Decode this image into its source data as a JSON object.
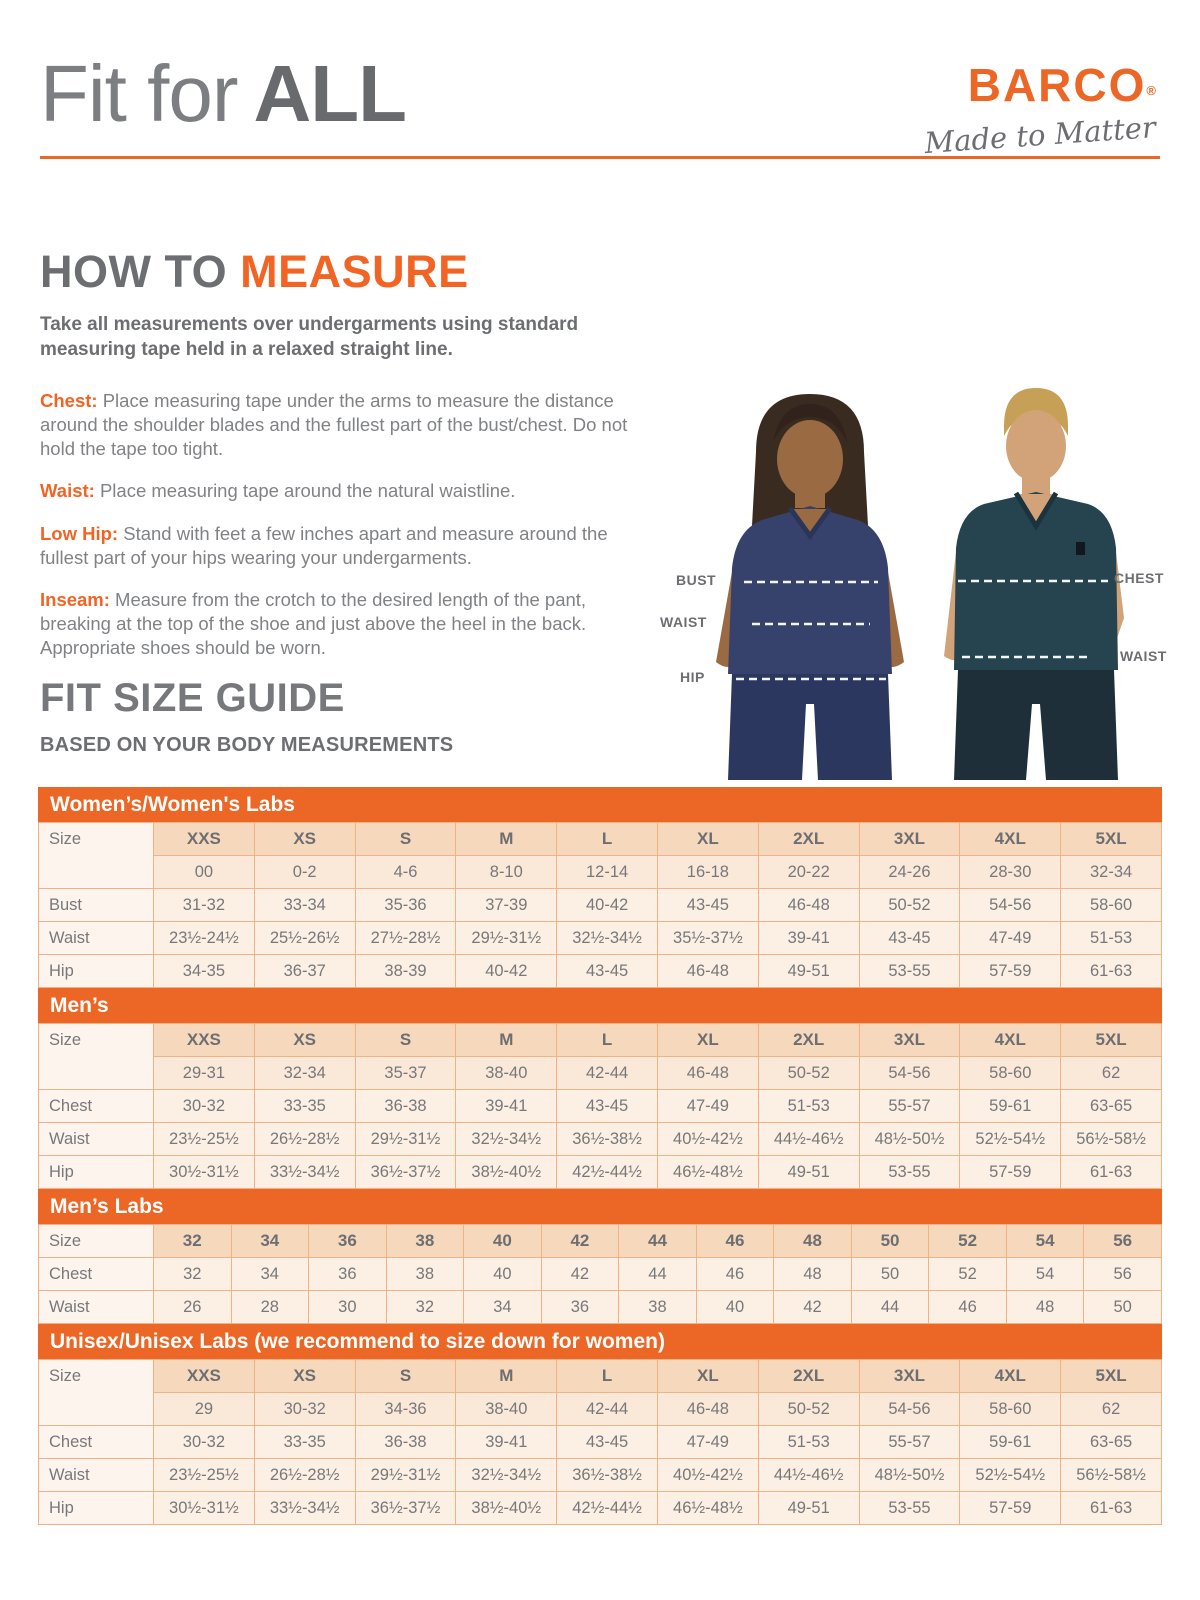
{
  "header": {
    "title_light": "Fit for",
    "title_bold": "ALL"
  },
  "brand": {
    "name": "BARCO",
    "registered": "®",
    "tagline": "Made to Matter"
  },
  "how_to_measure": {
    "heading_gray": "HOW TO ",
    "heading_orange": "MEASURE",
    "intro": "Take all measurements over undergarments using standard measuring tape held in a relaxed straight line.",
    "items": [
      {
        "label": "Chest:",
        "text": " Place measuring tape under the arms to measure the distance around the shoulder blades and the fullest part of the bust/chest. Do not hold the tape too tight."
      },
      {
        "label": "Waist:",
        "text": " Place measuring tape around the natural waistline."
      },
      {
        "label": "Low Hip:",
        "text": " Stand with feet a few inches apart and measure around the fullest part of your hips wearing your undergarments."
      },
      {
        "label": "Inseam:",
        "text": " Measure from the crotch to the desired length of the pant, breaking at the top of the shoe and just above the heel in the back. Appropriate shoes should be worn."
      }
    ]
  },
  "figure": {
    "bust_label": "BUST",
    "waist_left_label": "WAIST",
    "hip_label": "HIP",
    "chest_label": "CHEST",
    "waist_right_label": "WAIST"
  },
  "size_guide": {
    "heading": "FIT SIZE GUIDE",
    "subheading": "BASED ON YOUR BODY MEASUREMENTS",
    "size_label": "Size",
    "tables": [
      {
        "id": "womens",
        "title": "Women’s/Women's Labs",
        "headers": [
          "XXS",
          "XS",
          "S",
          "M",
          "L",
          "XL",
          "2XL",
          "3XL",
          "4XL",
          "5XL"
        ],
        "size_values": [
          "00",
          "0-2",
          "4-6",
          "8-10",
          "12-14",
          "16-18",
          "20-22",
          "24-26",
          "28-30",
          "32-34"
        ],
        "rows": [
          {
            "label": "Bust",
            "values": [
              "31-32",
              "33-34",
              "35-36",
              "37-39",
              "40-42",
              "43-45",
              "46-48",
              "50-52",
              "54-56",
              "58-60"
            ]
          },
          {
            "label": "Waist",
            "values": [
              "23½-24½",
              "25½-26½",
              "27½-28½",
              "29½-31½",
              "32½-34½",
              "35½-37½",
              "39-41",
              "43-45",
              "47-49",
              "51-53"
            ]
          },
          {
            "label": "Hip",
            "values": [
              "34-35",
              "36-37",
              "38-39",
              "40-42",
              "43-45",
              "46-48",
              "49-51",
              "53-55",
              "57-59",
              "61-63"
            ]
          }
        ]
      },
      {
        "id": "mens",
        "title": "Men’s",
        "headers": [
          "XXS",
          "XS",
          "S",
          "M",
          "L",
          "XL",
          "2XL",
          "3XL",
          "4XL",
          "5XL"
        ],
        "size_values": [
          "29-31",
          "32-34",
          "35-37",
          "38-40",
          "42-44",
          "46-48",
          "50-52",
          "54-56",
          "58-60",
          "62"
        ],
        "rows": [
          {
            "label": "Chest",
            "values": [
              "30-32",
              "33-35",
              "36-38",
              "39-41",
              "43-45",
              "47-49",
              "51-53",
              "55-57",
              "59-61",
              "63-65"
            ]
          },
          {
            "label": "Waist",
            "values": [
              "23½-25½",
              "26½-28½",
              "29½-31½",
              "32½-34½",
              "36½-38½",
              "40½-42½",
              "44½-46½",
              "48½-50½",
              "52½-54½",
              "56½-58½"
            ]
          },
          {
            "label": "Hip",
            "values": [
              "30½-31½",
              "33½-34½",
              "36½-37½",
              "38½-40½",
              "42½-44½",
              "46½-48½",
              "49-51",
              "53-55",
              "57-59",
              "61-63"
            ]
          }
        ]
      },
      {
        "id": "mens-labs",
        "title": "Men’s Labs",
        "headers": [
          "32",
          "34",
          "36",
          "38",
          "40",
          "42",
          "44",
          "46",
          "48",
          "50",
          "52",
          "54",
          "56"
        ],
        "rows": [
          {
            "label": "Chest",
            "values": [
              "32",
              "34",
              "36",
              "38",
              "40",
              "42",
              "44",
              "46",
              "48",
              "50",
              "52",
              "54",
              "56"
            ]
          },
          {
            "label": "Waist",
            "values": [
              "26",
              "28",
              "30",
              "32",
              "34",
              "36",
              "38",
              "40",
              "42",
              "44",
              "46",
              "48",
              "50"
            ]
          }
        ]
      },
      {
        "id": "unisex",
        "title": "Unisex/Unisex Labs (we recommend to size down for women)",
        "headers": [
          "XXS",
          "XS",
          "S",
          "M",
          "L",
          "XL",
          "2XL",
          "3XL",
          "4XL",
          "5XL"
        ],
        "size_values": [
          "29",
          "30-32",
          "34-36",
          "38-40",
          "42-44",
          "46-48",
          "50-52",
          "54-56",
          "58-60",
          "62"
        ],
        "rows": [
          {
            "label": "Chest",
            "values": [
              "30-32",
              "33-35",
              "36-38",
              "39-41",
              "43-45",
              "47-49",
              "51-53",
              "55-57",
              "59-61",
              "63-65"
            ]
          },
          {
            "label": "Waist",
            "values": [
              "23½-25½",
              "26½-28½",
              "29½-31½",
              "32½-34½",
              "36½-38½",
              "40½-42½",
              "44½-46½",
              "48½-50½",
              "52½-54½",
              "56½-58½"
            ]
          },
          {
            "label": "Hip",
            "values": [
              "30½-31½",
              "33½-34½",
              "36½-37½",
              "38½-40½",
              "42½-44½",
              "46½-48½",
              "49-51",
              "53-55",
              "57-59",
              "61-63"
            ]
          }
        ]
      }
    ]
  },
  "colors": {
    "accent_orange": "#EC6726",
    "heading_orange": "#F26424",
    "dark_gray": "#6D6E71",
    "heading_gray": "#77787B",
    "body_gray": "#808285",
    "table_band_bg": "#EC6726",
    "table_header_bg": "#F6D9BD",
    "table_size_row_bg": "#FAE8D8",
    "table_data_bg": "#FCEFE3",
    "table_label_bg": "#FDF5ED",
    "table_border": "#F3B285",
    "scrub_navy": "#36426C",
    "scrub_teal": "#264450"
  }
}
